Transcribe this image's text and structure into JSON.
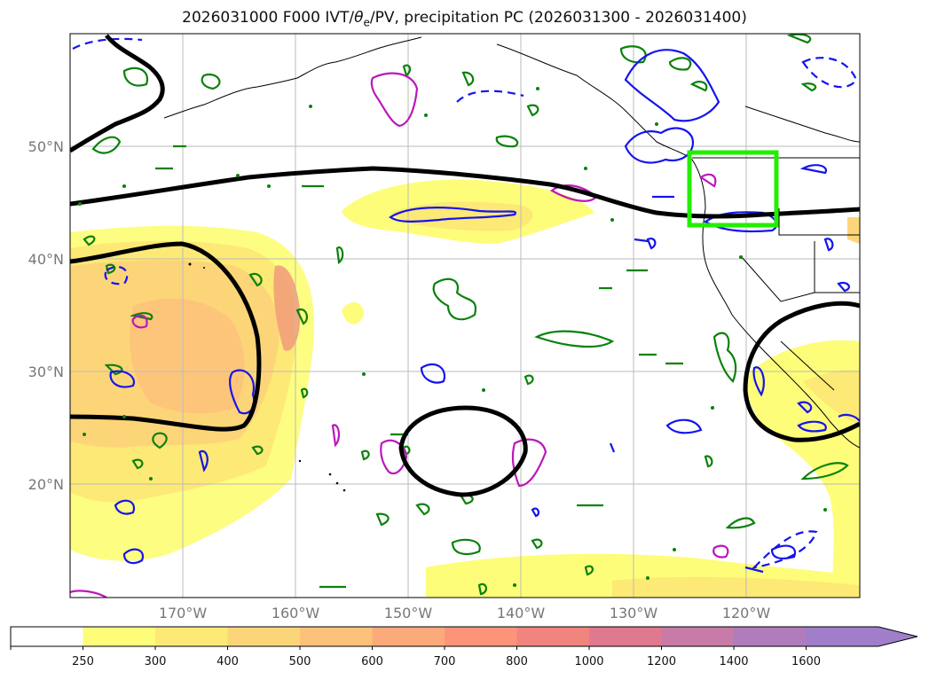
{
  "title": {
    "prefix": "2026031000 F000 IVT/",
    "theta": "θ",
    "theta_sub": "e",
    "suffix": "/PV, precipitation PC (2026031300 - 2026031400)"
  },
  "latitude_labels": [
    "50°N",
    "40°N",
    "30°N",
    "20°N"
  ],
  "longitude_labels": [
    "170°W",
    "160°W",
    "150°W",
    "140°W",
    "130°W",
    "120°W"
  ],
  "colorbar": {
    "labels": [
      "250",
      "300",
      "400",
      "500",
      "600",
      "700",
      "800",
      "1000",
      "1200",
      "1400",
      "1600"
    ],
    "colors": [
      "#ffffff",
      "#fdfd7a",
      "#fde975",
      "#fdd579",
      "#fdc27a",
      "#fdaa7a",
      "#fd947a",
      "#f2847e",
      "#e0798f",
      "#c87ba6",
      "#b07cbb",
      "#a07ec9"
    ]
  },
  "highlight_box_color": "#22ee00",
  "contour_colors": {
    "blue": "#1414ee",
    "green": "#0a820a",
    "magenta": "#bb18bb",
    "black": "#000000"
  }
}
